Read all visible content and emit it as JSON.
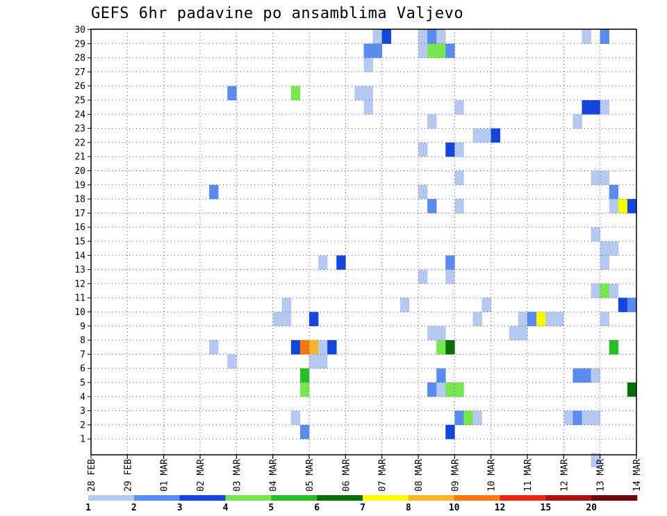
{
  "chart_data": {
    "type": "heatmap",
    "title": "GEFS 6hr padavine po ansamblima Valjevo",
    "xlabel": "",
    "ylabel": "",
    "x_tick_labels": [
      "28 FEB",
      "29 FEB",
      "01 MAR",
      "02 MAR",
      "03 MAR",
      "04 MAR",
      "05 MAR",
      "06 MAR",
      "07 MAR",
      "08 MAR",
      "09 MAR",
      "10 MAR",
      "11 MAR",
      "12 MAR",
      "13 MAR",
      "14 MAR"
    ],
    "y_tick_labels": [
      "1",
      "2",
      "3",
      "4",
      "5",
      "6",
      "7",
      "8",
      "9",
      "10",
      "11",
      "12",
      "13",
      "14",
      "15",
      "16",
      "17",
      "18",
      "19",
      "20",
      "21",
      "22",
      "23",
      "24",
      "25",
      "26",
      "27",
      "28",
      "29",
      "30"
    ],
    "x_unit": "6-hour step since 28 FEB 00Z",
    "y_unit": "ensemble member",
    "grid": true,
    "legend": {
      "placement": "bottom",
      "thresholds": [
        "1",
        "2",
        "3",
        "4",
        "5",
        "6",
        "7",
        "8",
        "10",
        "12",
        "15",
        "20"
      ],
      "colors": [
        "#b4c8f0",
        "#5a8cf0",
        "#1446dc",
        "#78e650",
        "#28be28",
        "#0a6e0a",
        "#fafa00",
        "#fab428",
        "#f57814",
        "#e62814",
        "#aa1414",
        "#6e0a0a"
      ]
    },
    "cells": [
      [
        31,
        30,
        0
      ],
      [
        32,
        30,
        2
      ],
      [
        36,
        30,
        0
      ],
      [
        37,
        30,
        1
      ],
      [
        38,
        30,
        0
      ],
      [
        54,
        30,
        0
      ],
      [
        56,
        30,
        1
      ],
      [
        30,
        29,
        1
      ],
      [
        31,
        29,
        1
      ],
      [
        36,
        29,
        0
      ],
      [
        37,
        29,
        3
      ],
      [
        38,
        29,
        3
      ],
      [
        39,
        29,
        1
      ],
      [
        30,
        28,
        0
      ],
      [
        15,
        26,
        1
      ],
      [
        22,
        26,
        3
      ],
      [
        29,
        26,
        0
      ],
      [
        30,
        26,
        0
      ],
      [
        30,
        25,
        0
      ],
      [
        40,
        25,
        0
      ],
      [
        54,
        25,
        2
      ],
      [
        55,
        25,
        2
      ],
      [
        56,
        25,
        0
      ],
      [
        37,
        24,
        0
      ],
      [
        53,
        24,
        0
      ],
      [
        42,
        23,
        0
      ],
      [
        43,
        23,
        0
      ],
      [
        44,
        23,
        2
      ],
      [
        36,
        22,
        0
      ],
      [
        39,
        22,
        2
      ],
      [
        40,
        22,
        0
      ],
      [
        40,
        20,
        0
      ],
      [
        55,
        20,
        0
      ],
      [
        56,
        20,
        0
      ],
      [
        13,
        19,
        1
      ],
      [
        36,
        19,
        0
      ],
      [
        57,
        19,
        1
      ],
      [
        37,
        18,
        1
      ],
      [
        40,
        18,
        0
      ],
      [
        57,
        18,
        0
      ],
      [
        58,
        18,
        6
      ],
      [
        59,
        18,
        2
      ],
      [
        55,
        16,
        0
      ],
      [
        56,
        15,
        0
      ],
      [
        57,
        15,
        0
      ],
      [
        25,
        14,
        0
      ],
      [
        27,
        14,
        2
      ],
      [
        39,
        14,
        1
      ],
      [
        56,
        14,
        0
      ],
      [
        36,
        13,
        0
      ],
      [
        39,
        13,
        0
      ],
      [
        55,
        12,
        0
      ],
      [
        56,
        12,
        3
      ],
      [
        57,
        12,
        0
      ],
      [
        21,
        11,
        0
      ],
      [
        34,
        11,
        0
      ],
      [
        43,
        11,
        0
      ],
      [
        58,
        11,
        2
      ],
      [
        59,
        11,
        1
      ],
      [
        20,
        10,
        0
      ],
      [
        21,
        10,
        0
      ],
      [
        24,
        10,
        2
      ],
      [
        42,
        10,
        0
      ],
      [
        47,
        10,
        0
      ],
      [
        48,
        10,
        1
      ],
      [
        49,
        10,
        6
      ],
      [
        50,
        10,
        0
      ],
      [
        51,
        10,
        0
      ],
      [
        56,
        10,
        0
      ],
      [
        37,
        9,
        0
      ],
      [
        38,
        9,
        0
      ],
      [
        46,
        9,
        0
      ],
      [
        47,
        9,
        0
      ],
      [
        13,
        8,
        0
      ],
      [
        22,
        8,
        2
      ],
      [
        23,
        8,
        8
      ],
      [
        24,
        8,
        7
      ],
      [
        25,
        8,
        0
      ],
      [
        26,
        8,
        2
      ],
      [
        38,
        8,
        3
      ],
      [
        39,
        8,
        5
      ],
      [
        57,
        8,
        4
      ],
      [
        15,
        7,
        0
      ],
      [
        24,
        7,
        0
      ],
      [
        25,
        7,
        0
      ],
      [
        23,
        6,
        4
      ],
      [
        38,
        6,
        1
      ],
      [
        53,
        6,
        1
      ],
      [
        54,
        6,
        1
      ],
      [
        55,
        6,
        0
      ],
      [
        23,
        5,
        3
      ],
      [
        37,
        5,
        1
      ],
      [
        38,
        5,
        0
      ],
      [
        39,
        5,
        3
      ],
      [
        40,
        5,
        3
      ],
      [
        59,
        5,
        5
      ],
      [
        22,
        3,
        0
      ],
      [
        40,
        3,
        1
      ],
      [
        41,
        3,
        3
      ],
      [
        42,
        3,
        0
      ],
      [
        52,
        3,
        0
      ],
      [
        53,
        3,
        1
      ],
      [
        54,
        3,
        0
      ],
      [
        55,
        3,
        0
      ],
      [
        23,
        2,
        1
      ],
      [
        39,
        2,
        2
      ],
      [
        55,
        0,
        0
      ]
    ]
  }
}
